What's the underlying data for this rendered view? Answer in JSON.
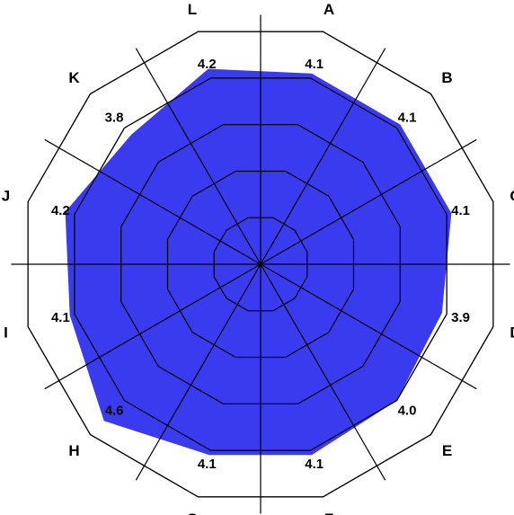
{
  "chart_data": {
    "type": "radar",
    "categories": [
      "A",
      "B",
      "C",
      "D",
      "E",
      "F",
      "G",
      "H",
      "I",
      "J",
      "K",
      "L"
    ],
    "values": [
      4.1,
      4.1,
      4.1,
      3.9,
      4.0,
      4.1,
      4.1,
      4.6,
      4.1,
      4.2,
      3.8,
      4.2
    ],
    "value_labels": [
      "4.1",
      "4.1",
      "4.1",
      "3.9",
      "4.0",
      "4.1",
      "4.1",
      "4.6",
      "4.1",
      "4.2",
      "3.8",
      "4.2"
    ],
    "rlim": [
      0,
      5
    ],
    "grid_levels": 5,
    "grid_shape": "polygon",
    "legend": "none",
    "colors": {
      "fill": "#3a3aee",
      "grid": "#000000",
      "background": "#ffffff"
    }
  }
}
